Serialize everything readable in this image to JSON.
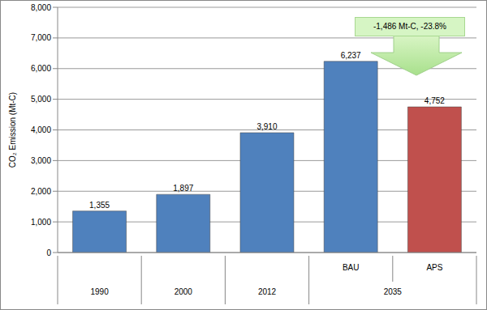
{
  "chart_data": {
    "type": "bar",
    "y_label": "CO₂ Emission (Mt-C)",
    "categories": [
      null,
      null,
      null,
      "BAU",
      "APS"
    ],
    "category_groups": [
      {
        "label": "1990",
        "members": [
          0
        ]
      },
      {
        "label": "2000",
        "members": [
          1
        ]
      },
      {
        "label": "2012",
        "members": [
          2
        ]
      },
      {
        "label": "2035",
        "members": [
          3,
          4
        ]
      }
    ],
    "values": [
      1355,
      1897,
      3910,
      6237,
      4752
    ],
    "value_labels": [
      "1,355",
      "1,897",
      "3,910",
      "6,237",
      "4,752"
    ],
    "colors": [
      "#4f81bd",
      "#4f81bd",
      "#4f81bd",
      "#4f81bd",
      "#c0504d"
    ],
    "ylim": [
      0,
      8000
    ],
    "yticks": [
      0,
      {
        "value": 1000,
        "label": "1,000"
      },
      {
        "value": 2000,
        "label": "2,000"
      },
      {
        "value": 3000,
        "label": "3,000"
      },
      {
        "value": 4000,
        "label": "4,000"
      },
      {
        "value": 5000,
        "label": "5,000"
      },
      {
        "value": 6000,
        "label": "6,000"
      },
      {
        "value": 7000,
        "label": "7,000"
      },
      {
        "value": 8000,
        "label": "8,000"
      }
    ],
    "grid": true,
    "data_labels": true,
    "annotation": "-1,486 Mt-C, -23.8%"
  }
}
